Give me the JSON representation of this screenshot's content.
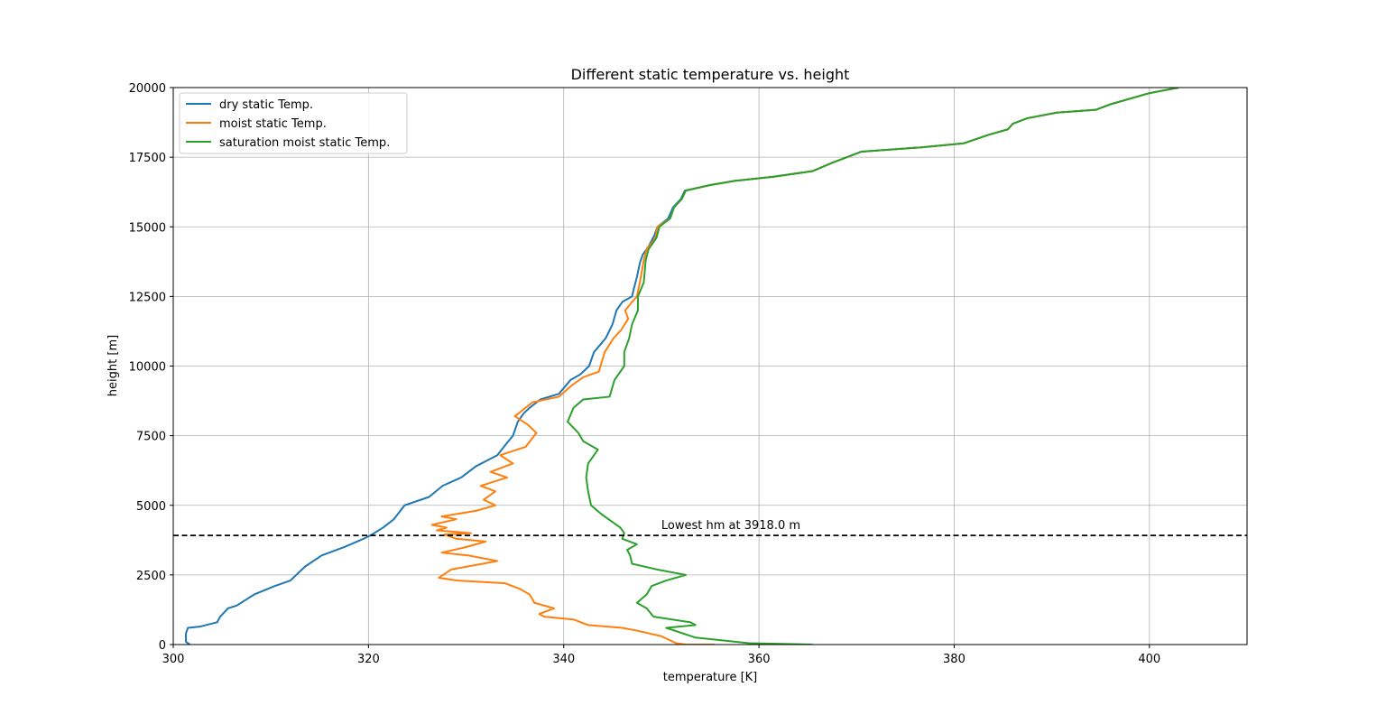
{
  "chart_data": {
    "type": "line",
    "title": "Different static temperature vs. height",
    "xlabel": "temperature [K]",
    "ylabel": "height [m]",
    "xlim": [
      300,
      410
    ],
    "ylim": [
      0,
      20000
    ],
    "xticks": [
      300,
      320,
      340,
      360,
      380,
      400
    ],
    "yticks": [
      0,
      2500,
      5000,
      7500,
      10000,
      12500,
      15000,
      17500,
      20000
    ],
    "grid": true,
    "legend_position": "upper-left",
    "series": [
      {
        "name": "dry static Temp.",
        "color": "#1f77b4",
        "points": [
          [
            301.7,
            0
          ],
          [
            301.3,
            100
          ],
          [
            301.3,
            400
          ],
          [
            301.5,
            600
          ],
          [
            302.8,
            650
          ],
          [
            304.5,
            800
          ],
          [
            304.8,
            1000
          ],
          [
            305.6,
            1300
          ],
          [
            306.5,
            1400
          ],
          [
            308.3,
            1800
          ],
          [
            310.4,
            2100
          ],
          [
            312,
            2300
          ],
          [
            313.5,
            2800
          ],
          [
            315.2,
            3200
          ],
          [
            317.5,
            3500
          ],
          [
            319.5,
            3800
          ],
          [
            320.2,
            3918
          ],
          [
            321.5,
            4200
          ],
          [
            322.6,
            4500
          ],
          [
            323.7,
            5000
          ],
          [
            326.2,
            5300
          ],
          [
            327.6,
            5700
          ],
          [
            329.5,
            6000
          ],
          [
            331,
            6400
          ],
          [
            333.2,
            6800
          ],
          [
            334.1,
            7200
          ],
          [
            334.8,
            7500
          ],
          [
            335.3,
            8000
          ],
          [
            335.9,
            8300
          ],
          [
            336.5,
            8500
          ],
          [
            337.6,
            8800
          ],
          [
            339.5,
            9000
          ],
          [
            340.7,
            9500
          ],
          [
            341.7,
            9700
          ],
          [
            342.6,
            10000
          ],
          [
            343.1,
            10500
          ],
          [
            344.3,
            11000
          ],
          [
            345,
            11500
          ],
          [
            345.4,
            12000
          ],
          [
            346,
            12300
          ],
          [
            347,
            12500
          ],
          [
            347.2,
            12800
          ],
          [
            347.5,
            13200
          ],
          [
            347.8,
            13700
          ],
          [
            348.1,
            14000
          ],
          [
            348.7,
            14300
          ],
          [
            349.3,
            14700
          ],
          [
            349.6,
            15000
          ],
          [
            350.7,
            15300
          ],
          [
            351.2,
            15700
          ],
          [
            352,
            16000
          ],
          [
            352.4,
            16300
          ],
          [
            355,
            16500
          ],
          [
            357.5,
            16650
          ],
          [
            361.5,
            16800
          ],
          [
            365.5,
            17000
          ],
          [
            367.5,
            17300
          ],
          [
            369,
            17500
          ],
          [
            370.5,
            17700
          ],
          [
            376.5,
            17850
          ],
          [
            381,
            18000
          ],
          [
            383.5,
            18300
          ],
          [
            385.5,
            18500
          ],
          [
            386,
            18700
          ],
          [
            387.5,
            18900
          ],
          [
            390.5,
            19100
          ],
          [
            394.5,
            19200
          ],
          [
            396,
            19400
          ],
          [
            398.5,
            19650
          ],
          [
            400,
            19800
          ],
          [
            403,
            20000
          ]
        ]
      },
      {
        "name": "moist static Temp.",
        "color": "#ff7f0e",
        "points": [
          [
            355.5,
            0
          ],
          [
            352.5,
            0
          ],
          [
            351.5,
            50
          ],
          [
            350,
            300
          ],
          [
            347.5,
            500
          ],
          [
            346,
            600
          ],
          [
            342.5,
            700
          ],
          [
            341,
            900
          ],
          [
            338,
            1000
          ],
          [
            337.5,
            1100
          ],
          [
            339,
            1300
          ],
          [
            337,
            1500
          ],
          [
            336.5,
            1800
          ],
          [
            335.5,
            2000
          ],
          [
            334,
            2200
          ],
          [
            329,
            2300
          ],
          [
            327.2,
            2400
          ],
          [
            328.5,
            2700
          ],
          [
            331.7,
            2900
          ],
          [
            333.2,
            3000
          ],
          [
            330.2,
            3200
          ],
          [
            327.5,
            3300
          ],
          [
            330,
            3500
          ],
          [
            332,
            3700
          ],
          [
            329,
            3800
          ],
          [
            327.8,
            3950
          ],
          [
            330.5,
            4000
          ],
          [
            327,
            4100
          ],
          [
            328,
            4200
          ],
          [
            326.5,
            4300
          ],
          [
            329,
            4500
          ],
          [
            327.5,
            4600
          ],
          [
            331,
            4800
          ],
          [
            333,
            5000
          ],
          [
            331.8,
            5200
          ],
          [
            333,
            5500
          ],
          [
            331.5,
            5700
          ],
          [
            334.2,
            6000
          ],
          [
            332.5,
            6200
          ],
          [
            334.8,
            6500
          ],
          [
            333.5,
            6800
          ],
          [
            336.1,
            7100
          ],
          [
            337.2,
            7600
          ],
          [
            336.3,
            7900
          ],
          [
            335,
            8200
          ],
          [
            336.8,
            8700
          ],
          [
            339.5,
            8900
          ],
          [
            340.8,
            9300
          ],
          [
            342,
            9600
          ],
          [
            343.6,
            9800
          ],
          [
            344.2,
            10500
          ],
          [
            345.1,
            11000
          ],
          [
            345.9,
            11300
          ],
          [
            346.6,
            11700
          ],
          [
            346.3,
            12000
          ],
          [
            347,
            12300
          ],
          [
            347.5,
            12500
          ],
          [
            347.8,
            13000
          ],
          [
            348.2,
            13800
          ],
          [
            348.5,
            14200
          ],
          [
            349.4,
            14600
          ],
          [
            349.6,
            15000
          ],
          [
            350.9,
            15300
          ],
          [
            351.3,
            15700
          ],
          [
            352.1,
            16000
          ],
          [
            352.5,
            16300
          ],
          [
            355,
            16500
          ],
          [
            357.5,
            16650
          ],
          [
            361.5,
            16800
          ],
          [
            365.5,
            17000
          ],
          [
            367.5,
            17300
          ],
          [
            369,
            17500
          ],
          [
            370.5,
            17700
          ],
          [
            376.5,
            17850
          ],
          [
            381,
            18000
          ],
          [
            383.5,
            18300
          ],
          [
            385.5,
            18500
          ],
          [
            386,
            18700
          ],
          [
            387.5,
            18900
          ],
          [
            390.5,
            19100
          ],
          [
            394.5,
            19200
          ],
          [
            396,
            19400
          ],
          [
            398.5,
            19650
          ],
          [
            400,
            19800
          ],
          [
            403,
            20000
          ]
        ]
      },
      {
        "name": "saturation moist static Temp.",
        "color": "#2ca02c",
        "points": [
          [
            365.5,
            0
          ],
          [
            359,
            50
          ],
          [
            353.5,
            250
          ],
          [
            350.5,
            600
          ],
          [
            353.5,
            700
          ],
          [
            353,
            800
          ],
          [
            349.2,
            1000
          ],
          [
            348.5,
            1300
          ],
          [
            347.5,
            1500
          ],
          [
            348.5,
            1800
          ],
          [
            349,
            2100
          ],
          [
            350.5,
            2300
          ],
          [
            352.5,
            2500
          ],
          [
            349.5,
            2700
          ],
          [
            347,
            2900
          ],
          [
            346.8,
            3200
          ],
          [
            346.5,
            3400
          ],
          [
            347.5,
            3600
          ],
          [
            346,
            3800
          ],
          [
            346.2,
            4000
          ],
          [
            345.8,
            4200
          ],
          [
            345,
            4400
          ],
          [
            343.8,
            4700
          ],
          [
            342.8,
            5000
          ],
          [
            342.5,
            5500
          ],
          [
            342.3,
            6000
          ],
          [
            342.5,
            6500
          ],
          [
            343.5,
            7000
          ],
          [
            342,
            7300
          ],
          [
            341.5,
            7600
          ],
          [
            340.4,
            8000
          ],
          [
            341,
            8500
          ],
          [
            342,
            8800
          ],
          [
            344.7,
            8900
          ],
          [
            345.2,
            9500
          ],
          [
            346.2,
            10000
          ],
          [
            346.2,
            10500
          ],
          [
            346.7,
            11000
          ],
          [
            347,
            11500
          ],
          [
            347.6,
            12000
          ],
          [
            347.6,
            12500
          ],
          [
            348.2,
            13000
          ],
          [
            348.4,
            13800
          ],
          [
            348.7,
            14200
          ],
          [
            349.5,
            14600
          ],
          [
            349.8,
            15000
          ],
          [
            350.9,
            15300
          ],
          [
            351.3,
            15700
          ],
          [
            352.1,
            16000
          ],
          [
            352.5,
            16300
          ],
          [
            355,
            16500
          ],
          [
            357.5,
            16650
          ],
          [
            361.5,
            16800
          ],
          [
            365.5,
            17000
          ],
          [
            367.5,
            17300
          ],
          [
            369,
            17500
          ],
          [
            370.5,
            17700
          ],
          [
            376.5,
            17850
          ],
          [
            381,
            18000
          ],
          [
            383.5,
            18300
          ],
          [
            385.5,
            18500
          ],
          [
            386,
            18700
          ],
          [
            387.5,
            18900
          ],
          [
            390.5,
            19100
          ],
          [
            394.5,
            19200
          ],
          [
            396,
            19400
          ],
          [
            398.5,
            19650
          ],
          [
            400,
            19800
          ],
          [
            403,
            20000
          ]
        ]
      }
    ],
    "hline": {
      "y": 3918.0,
      "style": "dashed",
      "color": "#000000",
      "annotation": "Lowest hm at 3918.0 m",
      "annotation_x": 350
    }
  }
}
